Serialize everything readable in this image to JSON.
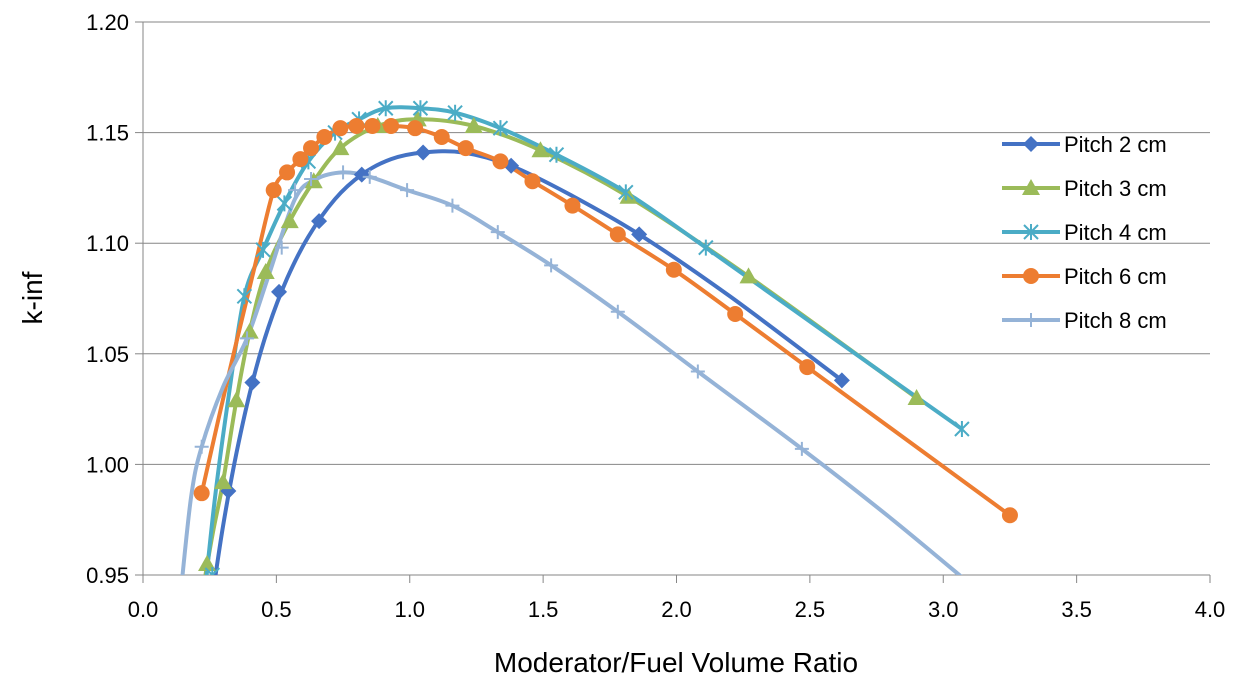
{
  "chart_data": {
    "type": "line",
    "title": "",
    "xlabel": "Moderator/Fuel Volume Ratio",
    "ylabel": "k-inf",
    "xlim": [
      0,
      4
    ],
    "ylim": [
      0.95,
      1.2
    ],
    "x_ticks": [
      "0.0",
      "0.5",
      "1.0",
      "1.5",
      "2.0",
      "2.5",
      "3.0",
      "3.5",
      "4.0"
    ],
    "y_ticks": [
      "0.95",
      "1.00",
      "1.05",
      "1.10",
      "1.15",
      "1.20"
    ],
    "grid": "horizontal",
    "legend_position": "right",
    "series": [
      {
        "name": "Pitch 2 cm",
        "color": "#4472c4",
        "marker": "diamond",
        "points": [
          [
            0.26,
            0.94
          ],
          [
            0.32,
            0.988
          ],
          [
            0.41,
            1.037
          ],
          [
            0.51,
            1.078
          ],
          [
            0.66,
            1.11
          ],
          [
            0.82,
            1.131
          ],
          [
            1.05,
            1.141
          ],
          [
            1.38,
            1.135
          ],
          [
            1.86,
            1.104
          ],
          [
            2.62,
            1.038
          ]
        ],
        "curve": [
          [
            0.26,
            0.94
          ],
          [
            0.3,
            0.972
          ],
          [
            0.35,
            1.005
          ],
          [
            0.41,
            1.037
          ],
          [
            0.47,
            1.062
          ],
          [
            0.54,
            1.084
          ],
          [
            0.62,
            1.103
          ],
          [
            0.72,
            1.12
          ],
          [
            0.82,
            1.131
          ],
          [
            0.93,
            1.138
          ],
          [
            1.05,
            1.141
          ],
          [
            1.2,
            1.141
          ],
          [
            1.38,
            1.135
          ],
          [
            1.6,
            1.122
          ],
          [
            1.86,
            1.104
          ],
          [
            2.2,
            1.076
          ],
          [
            2.62,
            1.038
          ]
        ]
      },
      {
        "name": "Pitch 3 cm",
        "color": "#9bbb59",
        "marker": "triangle",
        "points": [
          [
            0.24,
            0.955
          ],
          [
            0.3,
            0.992
          ],
          [
            0.35,
            1.029
          ],
          [
            0.4,
            1.06
          ],
          [
            0.46,
            1.087
          ],
          [
            0.55,
            1.11
          ],
          [
            0.64,
            1.128
          ],
          [
            0.74,
            1.143
          ],
          [
            0.88,
            1.153
          ],
          [
            1.03,
            1.156
          ],
          [
            1.24,
            1.153
          ],
          [
            1.49,
            1.142
          ],
          [
            1.82,
            1.121
          ],
          [
            2.27,
            1.085
          ],
          [
            2.9,
            1.03
          ]
        ],
        "curve": [
          [
            0.22,
            0.94
          ],
          [
            0.26,
            0.968
          ],
          [
            0.3,
            0.992
          ],
          [
            0.35,
            1.029
          ],
          [
            0.4,
            1.06
          ],
          [
            0.46,
            1.087
          ],
          [
            0.55,
            1.11
          ],
          [
            0.64,
            1.128
          ],
          [
            0.74,
            1.143
          ],
          [
            0.88,
            1.153
          ],
          [
            1.03,
            1.156
          ],
          [
            1.24,
            1.153
          ],
          [
            1.49,
            1.142
          ],
          [
            1.82,
            1.121
          ],
          [
            2.27,
            1.085
          ],
          [
            2.9,
            1.03
          ]
        ]
      },
      {
        "name": "Pitch 4 cm",
        "color": "#4bacc6",
        "marker": "star",
        "points": [
          [
            0.26,
            0.95
          ],
          [
            0.38,
            1.076
          ],
          [
            0.45,
            1.097
          ],
          [
            0.53,
            1.118
          ],
          [
            0.62,
            1.137
          ],
          [
            0.72,
            1.15
          ],
          [
            0.81,
            1.156
          ],
          [
            0.91,
            1.161
          ],
          [
            1.04,
            1.161
          ],
          [
            1.17,
            1.159
          ],
          [
            1.34,
            1.152
          ],
          [
            1.55,
            1.14
          ],
          [
            1.81,
            1.123
          ],
          [
            2.11,
            1.098
          ],
          [
            3.07,
            1.016
          ]
        ],
        "curve": [
          [
            0.23,
            0.94
          ],
          [
            0.27,
            0.985
          ],
          [
            0.32,
            1.03
          ],
          [
            0.38,
            1.076
          ],
          [
            0.45,
            1.097
          ],
          [
            0.53,
            1.118
          ],
          [
            0.62,
            1.137
          ],
          [
            0.72,
            1.15
          ],
          [
            0.81,
            1.156
          ],
          [
            0.91,
            1.161
          ],
          [
            1.04,
            1.161
          ],
          [
            1.17,
            1.159
          ],
          [
            1.34,
            1.152
          ],
          [
            1.55,
            1.14
          ],
          [
            1.81,
            1.123
          ],
          [
            2.11,
            1.098
          ],
          [
            2.6,
            1.056
          ],
          [
            3.07,
            1.016
          ]
        ]
      },
      {
        "name": "Pitch 6 cm",
        "color": "#ed7d31",
        "marker": "circle",
        "points": [
          [
            0.22,
            0.987
          ],
          [
            0.49,
            1.124
          ],
          [
            0.54,
            1.132
          ],
          [
            0.59,
            1.138
          ],
          [
            0.63,
            1.143
          ],
          [
            0.68,
            1.148
          ],
          [
            0.74,
            1.152
          ],
          [
            0.8,
            1.153
          ],
          [
            0.86,
            1.153
          ],
          [
            0.93,
            1.153
          ],
          [
            1.02,
            1.152
          ],
          [
            1.12,
            1.148
          ],
          [
            1.21,
            1.143
          ],
          [
            1.34,
            1.137
          ],
          [
            1.46,
            1.128
          ],
          [
            1.61,
            1.117
          ],
          [
            1.78,
            1.104
          ],
          [
            1.99,
            1.088
          ],
          [
            2.22,
            1.068
          ],
          [
            2.49,
            1.044
          ],
          [
            3.25,
            0.977
          ]
        ],
        "curve": [
          [
            0.22,
            0.987
          ],
          [
            0.32,
            1.04
          ],
          [
            0.42,
            1.09
          ],
          [
            0.49,
            1.124
          ],
          [
            0.54,
            1.132
          ],
          [
            0.59,
            1.138
          ],
          [
            0.63,
            1.143
          ],
          [
            0.68,
            1.148
          ],
          [
            0.74,
            1.152
          ],
          [
            0.8,
            1.153
          ],
          [
            0.86,
            1.153
          ],
          [
            0.93,
            1.153
          ],
          [
            1.02,
            1.152
          ],
          [
            1.12,
            1.148
          ],
          [
            1.21,
            1.143
          ],
          [
            1.34,
            1.137
          ],
          [
            1.46,
            1.128
          ],
          [
            1.61,
            1.117
          ],
          [
            1.78,
            1.104
          ],
          [
            1.99,
            1.088
          ],
          [
            2.22,
            1.068
          ],
          [
            2.49,
            1.044
          ],
          [
            3.25,
            0.977
          ]
        ]
      },
      {
        "name": "Pitch 8 cm",
        "color": "#95b3d7",
        "marker": "plus",
        "points": [
          [
            0.22,
            1.008
          ],
          [
            0.39,
            1.057
          ],
          [
            0.52,
            1.098
          ],
          [
            0.57,
            1.124
          ],
          [
            0.63,
            1.129
          ],
          [
            0.75,
            1.132
          ],
          [
            0.85,
            1.13
          ],
          [
            0.99,
            1.124
          ],
          [
            1.16,
            1.117
          ],
          [
            1.33,
            1.105
          ],
          [
            1.53,
            1.09
          ],
          [
            1.78,
            1.069
          ],
          [
            2.08,
            1.042
          ],
          [
            2.47,
            1.007
          ]
        ],
        "curve": [
          [
            0.14,
            0.94
          ],
          [
            0.18,
            0.985
          ],
          [
            0.22,
            1.008
          ],
          [
            0.3,
            1.035
          ],
          [
            0.39,
            1.057
          ],
          [
            0.47,
            1.085
          ],
          [
            0.57,
            1.12
          ],
          [
            0.65,
            1.129
          ],
          [
            0.75,
            1.132
          ],
          [
            0.85,
            1.13
          ],
          [
            0.99,
            1.124
          ],
          [
            1.16,
            1.117
          ],
          [
            1.33,
            1.105
          ],
          [
            1.53,
            1.09
          ],
          [
            1.78,
            1.069
          ],
          [
            2.08,
            1.042
          ],
          [
            2.47,
            1.007
          ],
          [
            2.8,
            0.976
          ],
          [
            3.1,
            0.946
          ]
        ]
      }
    ]
  }
}
